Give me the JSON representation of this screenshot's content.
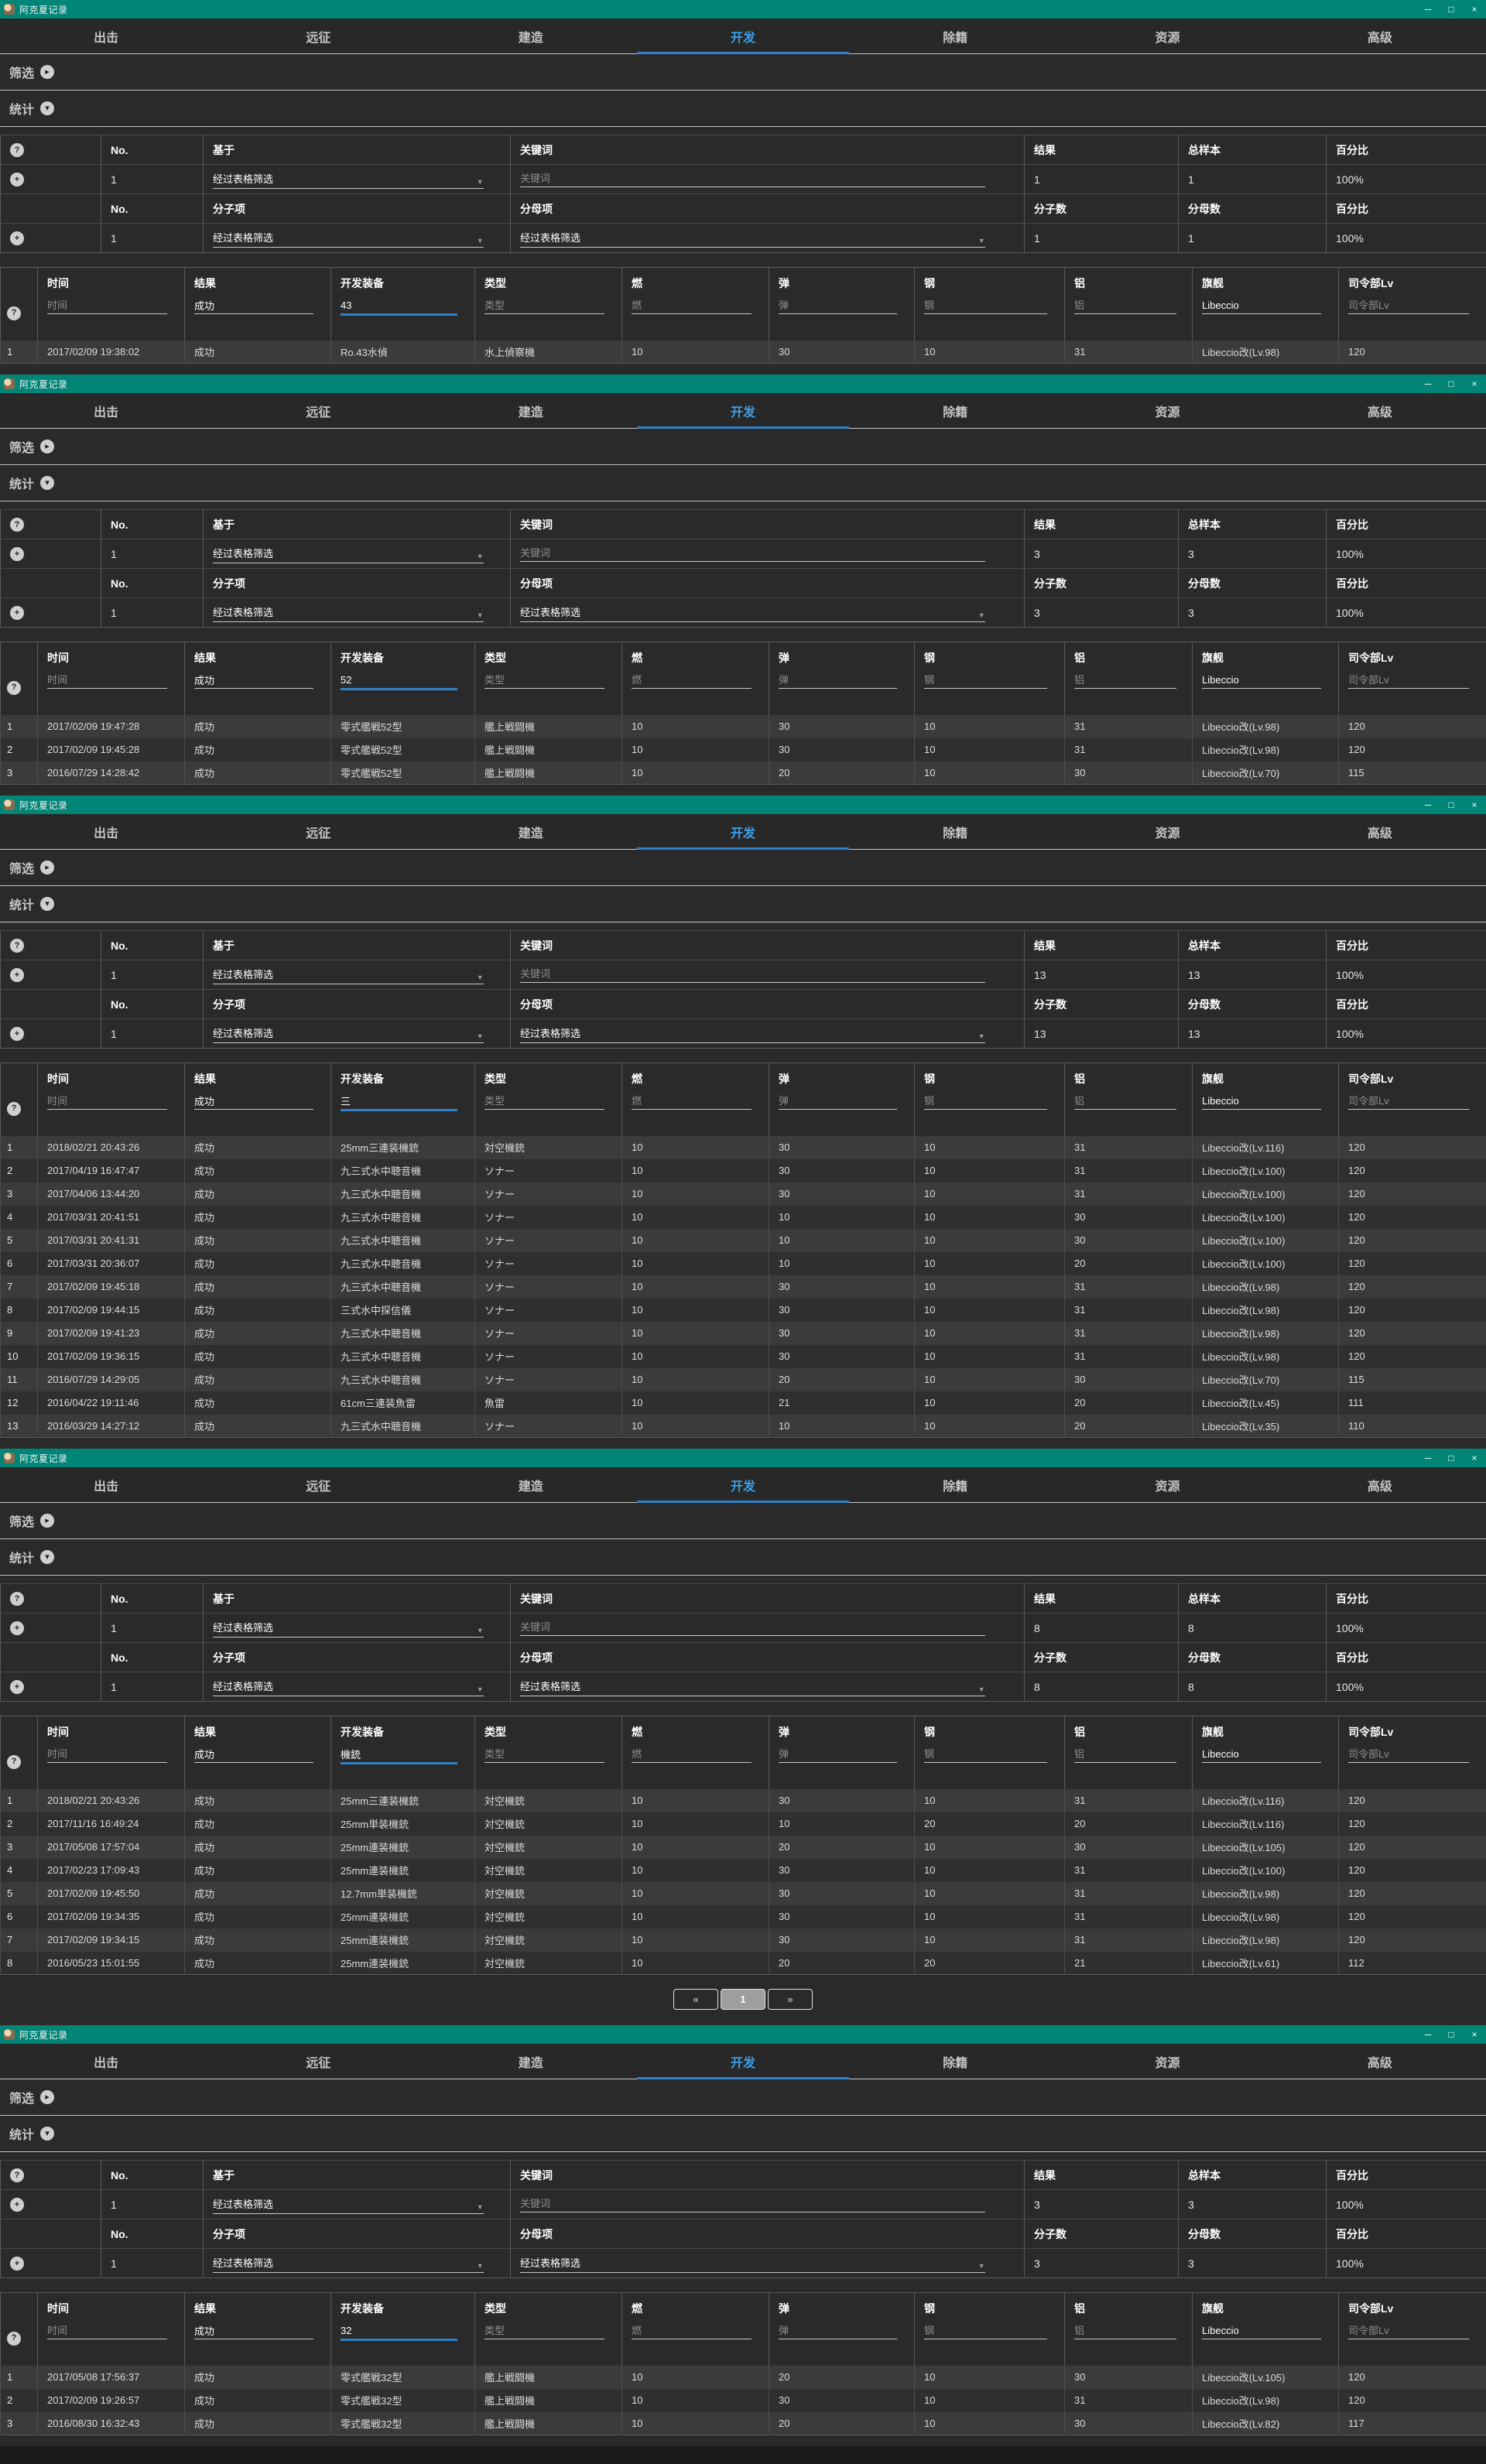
{
  "shared": {
    "window_title": "阿克夏记录",
    "colors": {
      "titlebar": "#008577",
      "active_tab": "#3d9ee8",
      "focus_underline": "#2f81c9"
    },
    "icons": {
      "help": "?",
      "add": "+",
      "chevron_right": "▸",
      "chevron_down": "▾",
      "dropdown_arrow": "▼",
      "minimize": "─",
      "maximize": "□",
      "close": "×",
      "prev": "«",
      "next": "»"
    },
    "tabs": [
      "出击",
      "远征",
      "建造",
      "开发",
      "除籍",
      "资源",
      "高级"
    ],
    "active_tab": "开发",
    "filter_section_label": "筛选",
    "stats_section_label": "统计",
    "stats": {
      "col_no": "No.",
      "col_basis": "基于",
      "col_keyword": "关键词",
      "col_result": "结果",
      "col_total": "总样本",
      "col_pct": "百分比",
      "col_numerator_item": "分子项",
      "col_denominator_item": "分母项",
      "col_numerator": "分子数",
      "col_denominator": "分母数",
      "dropdown_value": "经过表格筛选",
      "keyword_placeholder": "关键词"
    },
    "records": {
      "columns": [
        "时间",
        "结果",
        "开发装备",
        "类型",
        "燃",
        "弹",
        "钢",
        "铝",
        "旗舰",
        "司令部Lv"
      ],
      "filters": {
        "time": "时间",
        "result": "成功",
        "type": "类型",
        "fuel": "燃",
        "ammo": "弹",
        "steel": "钢",
        "bauxite": "铝",
        "flagship": "Libeccio",
        "hq": "司令部Lv"
      }
    },
    "pagination": {
      "prev": "«",
      "page": "1",
      "next": "»"
    }
  },
  "windows": [
    {
      "stats": {
        "no1": "1",
        "result": "1",
        "total": "1",
        "pct": "100%",
        "no2": "1",
        "numerator": "1",
        "denominator": "1",
        "pct2": "100%"
      },
      "equip_filter": "43",
      "show_pagination": false,
      "rows": [
        [
          "1",
          "2017/02/09 19:38:02",
          "成功",
          "Ro.43水偵",
          "水上偵察機",
          "10",
          "30",
          "10",
          "31",
          "Libeccio改(Lv.98)",
          "120"
        ]
      ]
    },
    {
      "stats": {
        "no1": "1",
        "result": "3",
        "total": "3",
        "pct": "100%",
        "no2": "1",
        "numerator": "3",
        "denominator": "3",
        "pct2": "100%"
      },
      "equip_filter": "52",
      "show_pagination": false,
      "rows": [
        [
          "1",
          "2017/02/09 19:47:28",
          "成功",
          "零式艦戦52型",
          "艦上戦闘機",
          "10",
          "30",
          "10",
          "31",
          "Libeccio改(Lv.98)",
          "120"
        ],
        [
          "2",
          "2017/02/09 19:45:28",
          "成功",
          "零式艦戦52型",
          "艦上戦闘機",
          "10",
          "30",
          "10",
          "31",
          "Libeccio改(Lv.98)",
          "120"
        ],
        [
          "3",
          "2016/07/29 14:28:42",
          "成功",
          "零式艦戦52型",
          "艦上戦闘機",
          "10",
          "20",
          "10",
          "30",
          "Libeccio改(Lv.70)",
          "115"
        ]
      ]
    },
    {
      "stats": {
        "no1": "1",
        "result": "13",
        "total": "13",
        "pct": "100%",
        "no2": "1",
        "numerator": "13",
        "denominator": "13",
        "pct2": "100%"
      },
      "equip_filter": "三",
      "show_pagination": false,
      "rows": [
        [
          "1",
          "2018/02/21 20:43:26",
          "成功",
          "25mm三連装機銃",
          "対空機銃",
          "10",
          "30",
          "10",
          "31",
          "Libeccio改(Lv.116)",
          "120"
        ],
        [
          "2",
          "2017/04/19 16:47:47",
          "成功",
          "九三式水中聴音機",
          "ソナー",
          "10",
          "30",
          "10",
          "31",
          "Libeccio改(Lv.100)",
          "120"
        ],
        [
          "3",
          "2017/04/06 13:44:20",
          "成功",
          "九三式水中聴音機",
          "ソナー",
          "10",
          "30",
          "10",
          "31",
          "Libeccio改(Lv.100)",
          "120"
        ],
        [
          "4",
          "2017/03/31 20:41:51",
          "成功",
          "九三式水中聴音機",
          "ソナー",
          "10",
          "10",
          "10",
          "30",
          "Libeccio改(Lv.100)",
          "120"
        ],
        [
          "5",
          "2017/03/31 20:41:31",
          "成功",
          "九三式水中聴音機",
          "ソナー",
          "10",
          "10",
          "10",
          "30",
          "Libeccio改(Lv.100)",
          "120"
        ],
        [
          "6",
          "2017/03/31 20:36:07",
          "成功",
          "九三式水中聴音機",
          "ソナー",
          "10",
          "10",
          "10",
          "20",
          "Libeccio改(Lv.100)",
          "120"
        ],
        [
          "7",
          "2017/02/09 19:45:18",
          "成功",
          "九三式水中聴音機",
          "ソナー",
          "10",
          "30",
          "10",
          "31",
          "Libeccio改(Lv.98)",
          "120"
        ],
        [
          "8",
          "2017/02/09 19:44:15",
          "成功",
          "三式水中探信儀",
          "ソナー",
          "10",
          "30",
          "10",
          "31",
          "Libeccio改(Lv.98)",
          "120"
        ],
        [
          "9",
          "2017/02/09 19:41:23",
          "成功",
          "九三式水中聴音機",
          "ソナー",
          "10",
          "30",
          "10",
          "31",
          "Libeccio改(Lv.98)",
          "120"
        ],
        [
          "10",
          "2017/02/09 19:36:15",
          "成功",
          "九三式水中聴音機",
          "ソナー",
          "10",
          "30",
          "10",
          "31",
          "Libeccio改(Lv.98)",
          "120"
        ],
        [
          "11",
          "2016/07/29 14:29:05",
          "成功",
          "九三式水中聴音機",
          "ソナー",
          "10",
          "20",
          "10",
          "30",
          "Libeccio改(Lv.70)",
          "115"
        ],
        [
          "12",
          "2016/04/22 19:11:46",
          "成功",
          "61cm三連装魚雷",
          "魚雷",
          "10",
          "21",
          "10",
          "20",
          "Libeccio改(Lv.45)",
          "111"
        ],
        [
          "13",
          "2016/03/29 14:27:12",
          "成功",
          "九三式水中聴音機",
          "ソナー",
          "10",
          "10",
          "10",
          "20",
          "Libeccio改(Lv.35)",
          "110"
        ]
      ]
    },
    {
      "stats": {
        "no1": "1",
        "result": "8",
        "total": "8",
        "pct": "100%",
        "no2": "1",
        "numerator": "8",
        "denominator": "8",
        "pct2": "100%"
      },
      "equip_filter": "機銃",
      "show_pagination": true,
      "rows": [
        [
          "1",
          "2018/02/21 20:43:26",
          "成功",
          "25mm三連装機銃",
          "対空機銃",
          "10",
          "30",
          "10",
          "31",
          "Libeccio改(Lv.116)",
          "120"
        ],
        [
          "2",
          "2017/11/16 16:49:24",
          "成功",
          "25mm単装機銃",
          "対空機銃",
          "10",
          "10",
          "20",
          "20",
          "Libeccio改(Lv.116)",
          "120"
        ],
        [
          "3",
          "2017/05/08 17:57:04",
          "成功",
          "25mm連装機銃",
          "対空機銃",
          "10",
          "20",
          "10",
          "30",
          "Libeccio改(Lv.105)",
          "120"
        ],
        [
          "4",
          "2017/02/23 17:09:43",
          "成功",
          "25mm連装機銃",
          "対空機銃",
          "10",
          "30",
          "10",
          "31",
          "Libeccio改(Lv.100)",
          "120"
        ],
        [
          "5",
          "2017/02/09 19:45:50",
          "成功",
          "12.7mm単装機銃",
          "対空機銃",
          "10",
          "30",
          "10",
          "31",
          "Libeccio改(Lv.98)",
          "120"
        ],
        [
          "6",
          "2017/02/09 19:34:35",
          "成功",
          "25mm連装機銃",
          "対空機銃",
          "10",
          "30",
          "10",
          "31",
          "Libeccio改(Lv.98)",
          "120"
        ],
        [
          "7",
          "2017/02/09 19:34:15",
          "成功",
          "25mm連装機銃",
          "対空機銃",
          "10",
          "30",
          "10",
          "31",
          "Libeccio改(Lv.98)",
          "120"
        ],
        [
          "8",
          "2016/05/23 15:01:55",
          "成功",
          "25mm連装機銃",
          "対空機銃",
          "10",
          "20",
          "20",
          "21",
          "Libeccio改(Lv.61)",
          "112"
        ]
      ]
    },
    {
      "stats": {
        "no1": "1",
        "result": "3",
        "total": "3",
        "pct": "100%",
        "no2": "1",
        "numerator": "3",
        "denominator": "3",
        "pct2": "100%"
      },
      "equip_filter": "32",
      "show_pagination": false,
      "rows": [
        [
          "1",
          "2017/05/08 17:56:37",
          "成功",
          "零式艦戦32型",
          "艦上戦闘機",
          "10",
          "20",
          "10",
          "30",
          "Libeccio改(Lv.105)",
          "120"
        ],
        [
          "2",
          "2017/02/09 19:26:57",
          "成功",
          "零式艦戦32型",
          "艦上戦闘機",
          "10",
          "30",
          "10",
          "31",
          "Libeccio改(Lv.98)",
          "120"
        ],
        [
          "3",
          "2016/08/30 16:32:43",
          "成功",
          "零式艦戦32型",
          "艦上戦闘機",
          "10",
          "20",
          "10",
          "30",
          "Libeccio改(Lv.82)",
          "117"
        ]
      ]
    }
  ]
}
